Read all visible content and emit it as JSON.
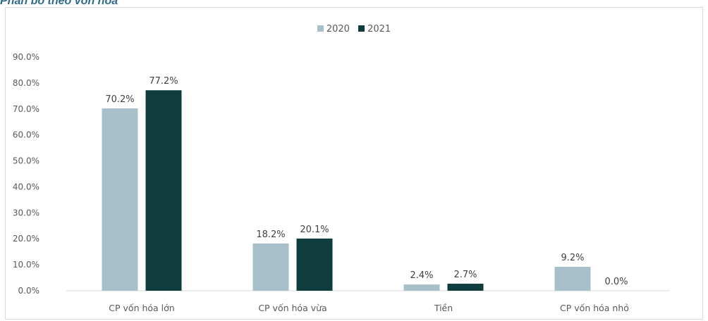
{
  "caption": "Phân bổ theo vốn hóa",
  "chart_data": {
    "type": "bar",
    "title": "",
    "xlabel": "",
    "ylabel": "",
    "categories": [
      "CP vốn hóa lớn",
      "CP vốn hóa vừa",
      "Tiền",
      "CP vốn hóa nhỏ"
    ],
    "series": [
      {
        "name": "2020",
        "values": [
          70.2,
          18.2,
          2.4,
          9.2
        ],
        "labels": [
          "70.2%",
          "18.2%",
          "2.4%",
          "9.2%"
        ],
        "color": "#a6bfc9"
      },
      {
        "name": "2021",
        "values": [
          77.2,
          20.1,
          2.7,
          0.0
        ],
        "labels": [
          "77.2%",
          "20.1%",
          "2.7%",
          "0.0%"
        ],
        "color": "#0f3d3e"
      }
    ],
    "ylim": [
      0,
      90
    ],
    "yticks": [
      "0.0%",
      "10.0%",
      "20.0%",
      "30.0%",
      "40.0%",
      "50.0%",
      "60.0%",
      "70.0%",
      "80.0%",
      "90.0%"
    ],
    "grid": false,
    "legend_position": "top-center"
  }
}
